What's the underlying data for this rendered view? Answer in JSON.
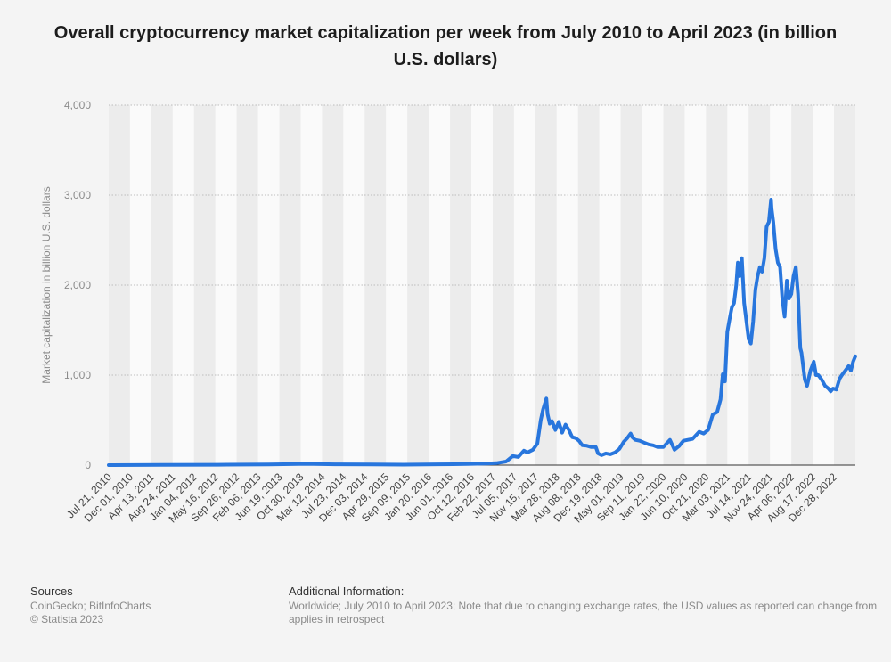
{
  "title": "Overall cryptocurrency market capitalization per week from July 2010 to April 2023 (in billion U.S. dollars)",
  "footer": {
    "sources_heading": "Sources",
    "sources_line1": "CoinGecko; BitInfoCharts",
    "sources_line2": "© Statista 2023",
    "info_heading": "Additional Information:",
    "info_line1": "Worldwide; July 2010 to April 2023; Note that due to changing exchange rates, the USD values as reported can change from",
    "info_line2": "applies in retrospect"
  },
  "chart_data": {
    "type": "line",
    "title": "Overall cryptocurrency market capitalization per week from July 2010 to April 2023 (in billion U.S. dollars)",
    "xlabel": "",
    "ylabel": "Market capitalization in billion U.S. dollars",
    "ylim": [
      0,
      4000
    ],
    "yticks": [
      0,
      1000,
      2000,
      3000,
      4000
    ],
    "ytick_labels": [
      "0",
      "1,000",
      "2,000",
      "3,000",
      "4,000"
    ],
    "xlim": [
      "2010-07-21",
      "2023-04-16"
    ],
    "xtick_labels": [
      "Jul 21, 2010",
      "Dec 01, 2010",
      "Apr 13, 2011",
      "Aug 24, 2011",
      "Jan 04, 2012",
      "May 16, 2012",
      "Sep 26, 2012",
      "Feb 06, 2013",
      "Jun 19, 2013",
      "Oct 30, 2013",
      "Mar 12, 2014",
      "Jul 23, 2014",
      "Dec 03, 2014",
      "Apr 29, 2015",
      "Sep 09, 2015",
      "Jan 20, 2016",
      "Jun 01, 2016",
      "Oct 12, 2016",
      "Feb 22, 2017",
      "Jul 05, 2017",
      "Nov 15, 2017",
      "Mar 28, 2018",
      "Aug 08, 2018",
      "Dec 19, 2018",
      "May 01, 2019",
      "Sep 11, 2019",
      "Jan 22, 2020",
      "Jun 10, 2020",
      "Oct 21, 2020",
      "Mar 03, 2021",
      "Jul 14, 2021",
      "Nov 24, 2021",
      "Apr 06, 2022",
      "Aug 17, 2022",
      "Dec 28, 2022"
    ],
    "grid": true,
    "line_color": "#2876dd",
    "series": [
      {
        "name": "",
        "x": [
          "2010-07-21",
          "2011-06-08",
          "2012-06-01",
          "2013-04-10",
          "2013-12-04",
          "2014-06-01",
          "2015-01-15",
          "2015-08-01",
          "2016-03-01",
          "2016-09-01",
          "2017-01-01",
          "2017-03-01",
          "2017-05-01",
          "2017-06-11",
          "2017-07-16",
          "2017-08-20",
          "2017-09-10",
          "2017-10-15",
          "2017-11-12",
          "2017-12-03",
          "2017-12-17",
          "2018-01-07",
          "2018-01-14",
          "2018-01-28",
          "2018-02-11",
          "2018-03-04",
          "2018-03-25",
          "2018-04-15",
          "2018-05-06",
          "2018-05-27",
          "2018-06-17",
          "2018-07-08",
          "2018-07-29",
          "2018-08-19",
          "2018-09-16",
          "2018-10-14",
          "2018-11-11",
          "2018-11-25",
          "2018-12-16",
          "2019-01-13",
          "2019-02-10",
          "2019-03-10",
          "2019-04-07",
          "2019-05-05",
          "2019-05-26",
          "2019-06-16",
          "2019-06-26",
          "2019-07-14",
          "2019-08-11",
          "2019-09-08",
          "2019-10-06",
          "2019-11-03",
          "2019-12-01",
          "2020-01-05",
          "2020-02-16",
          "2020-03-15",
          "2020-04-12",
          "2020-05-10",
          "2020-06-07",
          "2020-07-05",
          "2020-08-16",
          "2020-09-13",
          "2020-10-11",
          "2020-11-08",
          "2020-12-06",
          "2020-12-27",
          "2021-01-10",
          "2021-01-24",
          "2021-02-07",
          "2021-02-21",
          "2021-03-07",
          "2021-03-21",
          "2021-04-04",
          "2021-04-14",
          "2021-04-25",
          "2021-05-09",
          "2021-05-23",
          "2021-06-06",
          "2021-06-20",
          "2021-07-04",
          "2021-07-18",
          "2021-08-01",
          "2021-08-15",
          "2021-08-29",
          "2021-09-12",
          "2021-09-26",
          "2021-10-10",
          "2021-10-24",
          "2021-11-07",
          "2021-11-10",
          "2021-11-21",
          "2021-12-05",
          "2021-12-19",
          "2022-01-02",
          "2022-01-16",
          "2022-01-30",
          "2022-02-13",
          "2022-02-27",
          "2022-03-13",
          "2022-03-27",
          "2022-04-10",
          "2022-04-24",
          "2022-05-08",
          "2022-05-15",
          "2022-06-05",
          "2022-06-19",
          "2022-07-10",
          "2022-07-31",
          "2022-08-14",
          "2022-08-28",
          "2022-09-18",
          "2022-10-09",
          "2022-10-30",
          "2022-11-13",
          "2022-11-27",
          "2022-12-18",
          "2023-01-08",
          "2023-01-22",
          "2023-02-12",
          "2023-03-05",
          "2023-03-19",
          "2023-04-02",
          "2023-04-16"
        ],
        "values": [
          0,
          2,
          4,
          8,
          14,
          9,
          7,
          5,
          9,
          12,
          17,
          22,
          40,
          100,
          90,
          160,
          140,
          170,
          240,
          500,
          620,
          740,
          570,
          460,
          490,
          390,
          480,
          360,
          450,
          390,
          310,
          300,
          270,
          220,
          215,
          200,
          200,
          130,
          110,
          130,
          120,
          140,
          180,
          260,
          300,
          350,
          310,
          280,
          270,
          250,
          230,
          220,
          200,
          200,
          280,
          170,
          210,
          270,
          280,
          290,
          370,
          350,
          390,
          560,
          590,
          730,
          1010,
          930,
          1480,
          1620,
          1750,
          1800,
          2000,
          2250,
          2100,
          2300,
          1800,
          1600,
          1400,
          1350,
          1600,
          1950,
          2100,
          2200,
          2150,
          2300,
          2650,
          2700,
          2950,
          2850,
          2700,
          2400,
          2250,
          2200,
          1850,
          1650,
          2050,
          1850,
          1900,
          2100,
          2200,
          1900,
          1300,
          1250,
          950,
          880,
          1050,
          1150,
          1000,
          1000,
          950,
          880,
          850,
          820,
          850,
          840,
          960,
          1000,
          1050,
          1100,
          1050,
          1150,
          1210
        ]
      }
    ]
  }
}
